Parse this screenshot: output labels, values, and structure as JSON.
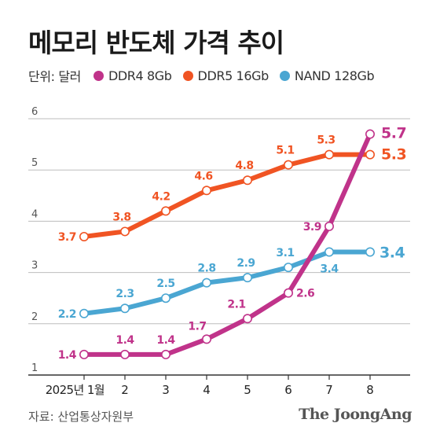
{
  "title": "메모리 반도체 가격 추이",
  "unit_label": "단위: 달러",
  "source": "자료: 산업통상자원부",
  "brand": "The JoongAng",
  "chart_data": {
    "type": "line",
    "title": "메모리 반도체 가격 추이",
    "xlabel": "",
    "ylabel": "",
    "unit": "단위: 달러",
    "x": [
      "2025년 1월",
      "2",
      "3",
      "4",
      "5",
      "6",
      "7",
      "8"
    ],
    "yticks": [
      1,
      2,
      3,
      4,
      5,
      6
    ],
    "ylim": [
      1,
      6
    ],
    "grid": true,
    "legend_position": "top-left",
    "series": [
      {
        "name": "DDR4 8Gb",
        "color": "#c0338a",
        "values": [
          1.4,
          1.4,
          1.4,
          1.7,
          2.1,
          2.6,
          3.9,
          5.7
        ],
        "labels": [
          "1.4",
          "1.4",
          "1.4",
          "1.7",
          "2.1",
          "2.6",
          "3.9",
          "5.7"
        ]
      },
      {
        "name": "DDR5 16Gb",
        "color": "#f05423",
        "values": [
          3.7,
          3.8,
          4.2,
          4.6,
          4.8,
          5.1,
          5.3,
          5.3
        ],
        "labels": [
          "3.7",
          "3.8",
          "4.2",
          "4.6",
          "4.8",
          "5.1",
          "5.3",
          "5.3"
        ]
      },
      {
        "name": "NAND 128Gb",
        "color": "#4aa6d2",
        "values": [
          2.2,
          2.3,
          2.5,
          2.8,
          2.9,
          3.1,
          3.4,
          3.4
        ],
        "labels": [
          "2.2",
          "2.3",
          "2.5",
          "2.8",
          "2.9",
          "3.1",
          "3.4",
          "3.4"
        ]
      }
    ]
  }
}
